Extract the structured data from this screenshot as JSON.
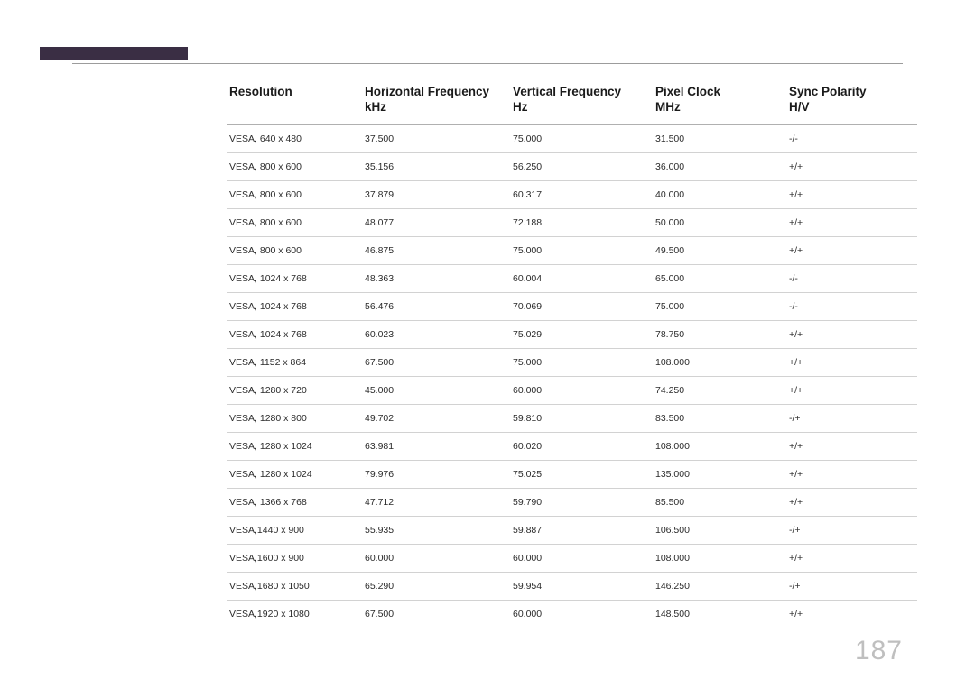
{
  "page_number": "187",
  "columns": [
    {
      "title": "Resolution",
      "sub": ""
    },
    {
      "title": "Horizontal Frequency",
      "sub": "kHz"
    },
    {
      "title": "Vertical Frequency",
      "sub": "Hz"
    },
    {
      "title": "Pixel Clock",
      "sub": "MHz"
    },
    {
      "title": "Sync Polarity",
      "sub": "H/V"
    }
  ],
  "rows": [
    [
      "VESA, 640 x 480",
      "37.500",
      "75.000",
      "31.500",
      "-/-"
    ],
    [
      "VESA, 800 x 600",
      "35.156",
      "56.250",
      "36.000",
      "+/+"
    ],
    [
      "VESA, 800 x 600",
      "37.879",
      "60.317",
      "40.000",
      "+/+"
    ],
    [
      "VESA, 800 x 600",
      "48.077",
      "72.188",
      "50.000",
      "+/+"
    ],
    [
      "VESA, 800 x 600",
      "46.875",
      "75.000",
      "49.500",
      "+/+"
    ],
    [
      "VESA, 1024 x 768",
      "48.363",
      "60.004",
      "65.000",
      "-/-"
    ],
    [
      "VESA, 1024 x 768",
      "56.476",
      "70.069",
      "75.000",
      "-/-"
    ],
    [
      "VESA, 1024 x 768",
      "60.023",
      "75.029",
      "78.750",
      "+/+"
    ],
    [
      "VESA, 1152 x 864",
      "67.500",
      "75.000",
      "108.000",
      "+/+"
    ],
    [
      "VESA, 1280 x 720",
      "45.000",
      "60.000",
      "74.250",
      "+/+"
    ],
    [
      "VESA, 1280 x 800",
      "49.702",
      "59.810",
      "83.500",
      "-/+"
    ],
    [
      "VESA, 1280 x 1024",
      "63.981",
      "60.020",
      "108.000",
      "+/+"
    ],
    [
      "VESA, 1280 x 1024",
      "79.976",
      "75.025",
      "135.000",
      "+/+"
    ],
    [
      "VESA, 1366 x 768",
      "47.712",
      "59.790",
      "85.500",
      "+/+"
    ],
    [
      "VESA,1440 x 900",
      "55.935",
      "59.887",
      "106.500",
      "-/+"
    ],
    [
      "VESA,1600 x 900",
      "60.000",
      "60.000",
      "108.000",
      "+/+"
    ],
    [
      "VESA,1680 x 1050",
      "65.290",
      "59.954",
      "146.250",
      "-/+"
    ],
    [
      "VESA,1920 x 1080",
      "67.500",
      "60.000",
      "148.500",
      "+/+"
    ]
  ]
}
